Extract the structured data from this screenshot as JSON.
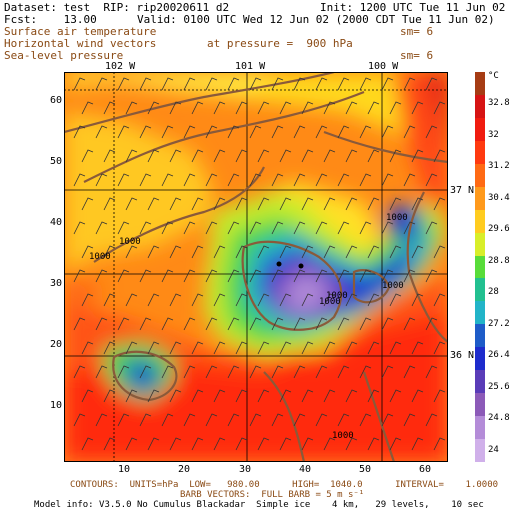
{
  "header": {
    "line1_left": "Dataset: test  RIP: rip20020611 d2",
    "line1_right": "Init: 1200 UTC Tue 11 Jun 02",
    "line2_left": "Fcst:    13.00",
    "line2_right": "Valid: 0100 UTC Wed 12 Jun 02 (2000 CDT Tue 11 Jun 02)",
    "field1": "Surface air temperature",
    "field1_sm": "sm= 6",
    "field2": "Horizontal wind vectors",
    "field2_pressure": "at pressure =  900 hPa",
    "field3": "Sea-level pressure",
    "field3_sm": "sm= 6"
  },
  "map": {
    "lon_labels": [
      "102 W",
      "101 W",
      "100 W"
    ],
    "lat_labels": [
      "37 N",
      "36 N"
    ],
    "x_ticks": [
      "10",
      "20",
      "30",
      "40",
      "50",
      "60"
    ],
    "y_ticks": [
      "10",
      "20",
      "30",
      "40",
      "50",
      "60"
    ],
    "contour_labels": [
      "1000",
      "1000",
      "1000",
      "1000",
      "1000",
      "1000",
      "1000"
    ],
    "colorbar_unit": "°C",
    "colorbar_labels": [
      "32.8",
      "32",
      "31.2",
      "30.4",
      "29.6",
      "28.8",
      "28",
      "27.2",
      "26.4",
      "25.6",
      "24.8",
      "24"
    ],
    "colorbar_colors": [
      "#a63c14",
      "#d61414",
      "#f01c10",
      "#ff3a10",
      "#ff6a14",
      "#ff9a1c",
      "#ffcc20",
      "#d8ee2a",
      "#58dc3a",
      "#22c090",
      "#22b4c8",
      "#1e5cc8",
      "#1e2ccc",
      "#5a3cb8",
      "#8c5ab8",
      "#b48cd8",
      "#d0b0ea"
    ]
  },
  "footer": {
    "contours": "CONTOURS:  UNITS=hPa  LOW=   980.00      HIGH=  1040.0      INTERVAL=    1.0000",
    "barbs": "BARB VECTORS:  FULL BARB = 5 m s⁻¹",
    "model": "Model info: V3.5.0 No Cumulus Blackadar  Simple ice    4 km,   29 levels,    10 sec"
  }
}
